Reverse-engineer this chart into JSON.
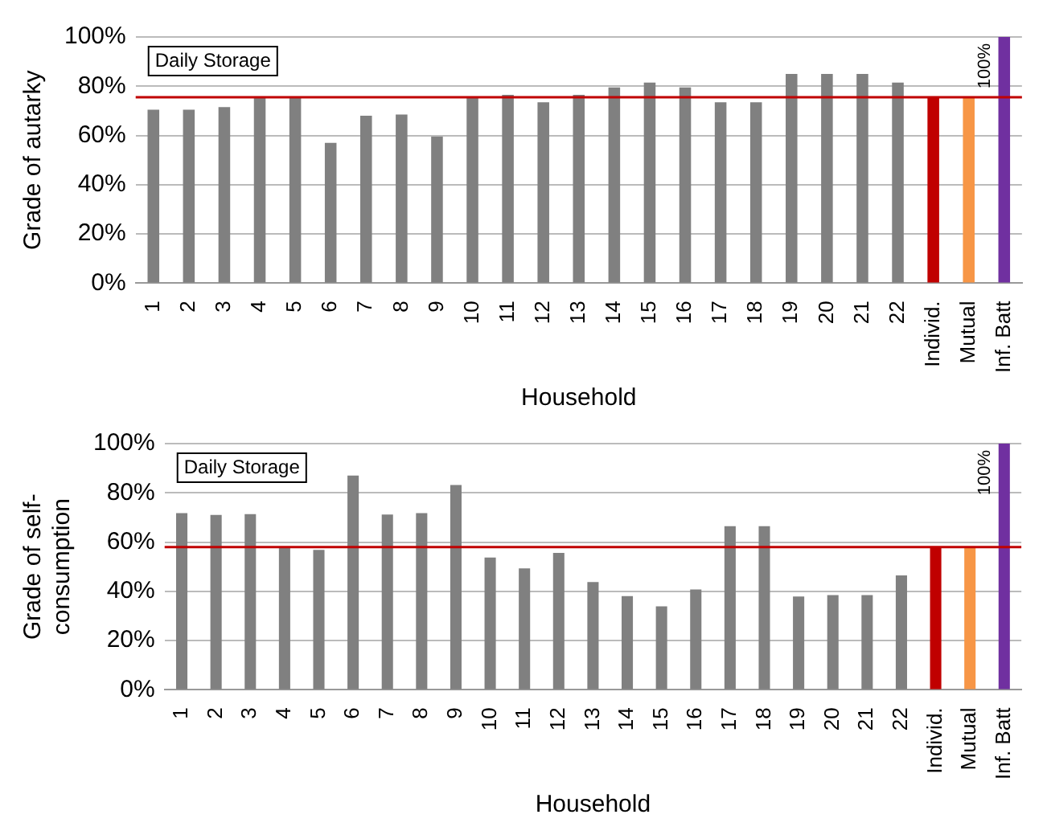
{
  "chart_data": [
    {
      "type": "bar",
      "ylabel": "Grade of autarky",
      "xlabel": "Household",
      "annotations": [
        "Daily Storage"
      ],
      "categories": [
        "1",
        "2",
        "3",
        "4",
        "5",
        "6",
        "7",
        "8",
        "9",
        "10",
        "11",
        "12",
        "13",
        "14",
        "15",
        "16",
        "17",
        "18",
        "19",
        "20",
        "21",
        "22",
        "Individ.",
        "Mutual",
        "Inf. Batt"
      ],
      "values": [
        70.5,
        70.5,
        71.5,
        75.5,
        75.5,
        57,
        68,
        68.5,
        59.5,
        75.5,
        76.5,
        73.5,
        76.5,
        79.5,
        81.5,
        79.5,
        73.5,
        73.5,
        85,
        85,
        85,
        81.5,
        75.5,
        75.5,
        100
      ],
      "value_labels": [
        null,
        null,
        null,
        null,
        null,
        null,
        null,
        null,
        null,
        null,
        null,
        null,
        null,
        null,
        null,
        null,
        null,
        null,
        null,
        null,
        null,
        null,
        null,
        null,
        "100%"
      ],
      "colors": [
        "#808080",
        "#808080",
        "#808080",
        "#808080",
        "#808080",
        "#808080",
        "#808080",
        "#808080",
        "#808080",
        "#808080",
        "#808080",
        "#808080",
        "#808080",
        "#808080",
        "#808080",
        "#808080",
        "#808080",
        "#808080",
        "#808080",
        "#808080",
        "#808080",
        "#808080",
        "#c00000",
        "#f79646",
        "#7030a0"
      ],
      "ylim": [
        0,
        100
      ],
      "yticks": [
        {
          "value": 0,
          "label": "0%"
        },
        {
          "value": 20,
          "label": "20%"
        },
        {
          "value": 40,
          "label": "40%"
        },
        {
          "value": 60,
          "label": "60%"
        },
        {
          "value": 80,
          "label": "80%"
        },
        {
          "value": 100,
          "label": "100%"
        }
      ],
      "ref_lines": [
        {
          "axis": "y",
          "value": 75.5,
          "color": "#c00000"
        }
      ],
      "grid": "y",
      "legend": false
    },
    {
      "type": "bar",
      "ylabel": "Grade of self-\nconsumption",
      "xlabel": "Household",
      "annotations": [
        "Daily Storage"
      ],
      "categories": [
        "1",
        "2",
        "3",
        "4",
        "5",
        "6",
        "7",
        "8",
        "9",
        "10",
        "11",
        "12",
        "13",
        "14",
        "15",
        "16",
        "17",
        "18",
        "19",
        "20",
        "21",
        "22",
        "Individ.",
        "Mutual",
        "Inf. Batt"
      ],
      "values": [
        71.8,
        71,
        71.4,
        57.7,
        56.8,
        87,
        71.2,
        71.8,
        83.2,
        53.7,
        49.3,
        55.6,
        43.8,
        38.1,
        33.9,
        40.8,
        66.5,
        66.5,
        37.9,
        38.5,
        38.5,
        46.5,
        58,
        58,
        100
      ],
      "value_labels": [
        null,
        null,
        null,
        null,
        null,
        null,
        null,
        null,
        null,
        null,
        null,
        null,
        null,
        null,
        null,
        null,
        null,
        null,
        null,
        null,
        null,
        null,
        null,
        null,
        "100%"
      ],
      "colors": [
        "#808080",
        "#808080",
        "#808080",
        "#808080",
        "#808080",
        "#808080",
        "#808080",
        "#808080",
        "#808080",
        "#808080",
        "#808080",
        "#808080",
        "#808080",
        "#808080",
        "#808080",
        "#808080",
        "#808080",
        "#808080",
        "#808080",
        "#808080",
        "#808080",
        "#808080",
        "#c00000",
        "#f79646",
        "#7030a0"
      ],
      "ylim": [
        0,
        100
      ],
      "yticks": [
        {
          "value": 0,
          "label": "0%"
        },
        {
          "value": 20,
          "label": "20%"
        },
        {
          "value": 40,
          "label": "40%"
        },
        {
          "value": 60,
          "label": "60%"
        },
        {
          "value": 80,
          "label": "80%"
        },
        {
          "value": 100,
          "label": "100%"
        }
      ],
      "ref_lines": [
        {
          "axis": "y",
          "value": 58,
          "color": "#c00000"
        }
      ],
      "grid": "y",
      "legend": false
    }
  ]
}
